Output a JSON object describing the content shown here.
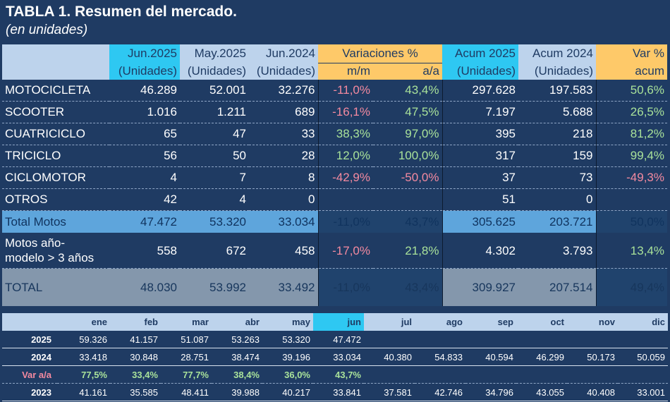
{
  "title": "TABLA 1. Resumen del mercado.",
  "subtitle": "(en unidades)",
  "headers": {
    "jun2025": "Jun.2025",
    "may2025": "May.2025",
    "jun2024": "Jun.2024",
    "units": "(Unidades)",
    "variaciones": "Variaciones %",
    "mm": "m/m",
    "aa": "a/a",
    "acum2025": "Acum 2025",
    "acum2024": "Acum 2024",
    "var": "Var %",
    "acum": "acum"
  },
  "rows": [
    {
      "name": "MOTOCICLETA",
      "jun25": "46.289",
      "may25": "52.001",
      "jun24": "32.276",
      "mm": "-11,0%",
      "aa": "43,4%",
      "acum25": "297.628",
      "acum24": "197.583",
      "var": "50,6%"
    },
    {
      "name": "SCOOTER",
      "jun25": "1.016",
      "may25": "1.211",
      "jun24": "689",
      "mm": "-16,1%",
      "aa": "47,5%",
      "acum25": "7.197",
      "acum24": "5.688",
      "var": "26,5%"
    },
    {
      "name": "CUATRICICLO",
      "jun25": "65",
      "may25": "47",
      "jun24": "33",
      "mm": "38,3%",
      "aa": "97,0%",
      "acum25": "395",
      "acum24": "218",
      "var": "81,2%"
    },
    {
      "name": "TRICICLO",
      "jun25": "56",
      "may25": "50",
      "jun24": "28",
      "mm": "12,0%",
      "aa": "100,0%",
      "acum25": "317",
      "acum24": "159",
      "var": "99,4%"
    },
    {
      "name": "CICLOMOTOR",
      "jun25": "4",
      "may25": "7",
      "jun24": "8",
      "mm": "-42,9%",
      "aa": "-50,0%",
      "acum25": "37",
      "acum24": "73",
      "var": "-49,3%"
    },
    {
      "name": "OTROS",
      "jun25": "42",
      "may25": "4",
      "jun24": "0",
      "mm": "",
      "aa": "",
      "acum25": "51",
      "acum24": "0",
      "var": ""
    }
  ],
  "total_motos": {
    "name": "Total Motos",
    "jun25": "47.472",
    "may25": "53.320",
    "jun24": "33.034",
    "mm": "-11,0%",
    "aa": "43,7%",
    "acum25": "305.625",
    "acum24": "203.721",
    "var": "50,0%"
  },
  "motos_old": {
    "name_line1": "Motos año-",
    "name_line2": "modelo > 3 años",
    "jun25": "558",
    "may25": "672",
    "jun24": "458",
    "mm": "-17,0%",
    "aa": "21,8%",
    "acum25": "4.302",
    "acum24": "3.793",
    "var": "13,4%"
  },
  "total": {
    "name": "TOTAL",
    "jun25": "48.030",
    "may25": "53.992",
    "jun24": "33.492",
    "mm": "-11,0%",
    "aa": "43,4%",
    "acum25": "309.927",
    "acum24": "207.514",
    "var": "49,4%"
  },
  "monthly": {
    "months": [
      "ene",
      "feb",
      "mar",
      "abr",
      "may",
      "jun",
      "jul",
      "ago",
      "sep",
      "oct",
      "nov",
      "dic"
    ],
    "current_month": "jun",
    "rows": [
      {
        "label": "2025",
        "values": [
          "59.326",
          "41.157",
          "51.087",
          "53.263",
          "53.320",
          "47.472",
          "",
          "",
          "",
          "",
          "",
          ""
        ]
      },
      {
        "label": "2024",
        "values": [
          "33.418",
          "30.848",
          "28.751",
          "38.474",
          "39.196",
          "33.034",
          "40.380",
          "54.833",
          "40.594",
          "46.299",
          "50.173",
          "50.059"
        ]
      },
      {
        "label": "Var a/a",
        "values": [
          "77,5%",
          "33,4%",
          "77,7%",
          "38,4%",
          "36,0%",
          "43,7%",
          "",
          "",
          "",
          "",
          "",
          ""
        ],
        "is_var": true
      },
      {
        "label": "2023",
        "values": [
          "41.161",
          "35.585",
          "48.411",
          "39.988",
          "40.217",
          "33.841",
          "37.581",
          "42.746",
          "34.796",
          "43.055",
          "40.408",
          "33.001"
        ]
      }
    ]
  },
  "colors": {
    "background": "#1f3b63",
    "header_cyan": "#2ec8f2",
    "header_light_blue": "#bdd3ec",
    "header_yellow": "#fec969",
    "negative": "#f48aa0",
    "positive": "#a9e29a",
    "total_row": "#5ea5dc",
    "grand_total_row": "#8497ac"
  }
}
